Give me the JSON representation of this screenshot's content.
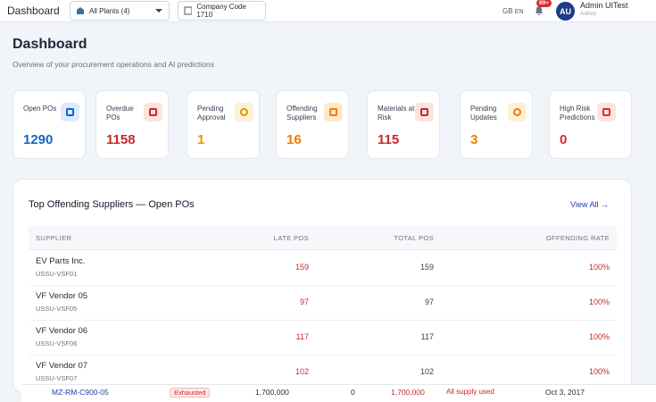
{
  "header": {
    "title": "Dashboard",
    "plant": "All Plants (4)",
    "company": "Company Code 1710",
    "lang_code": "GB",
    "lang": "EN",
    "notifications": "99+",
    "avatar": "AU",
    "user": "Admin UITest",
    "role": "Admin"
  },
  "page": {
    "title": "Dashboard",
    "subtitle": "Overview of your procurement operations and AI predictions"
  },
  "kpis": [
    {
      "label": "Open POs",
      "value": 1290
    },
    {
      "label": "Overdue POs",
      "value": 1158
    },
    {
      "label": "Pending Approval",
      "value": 1
    },
    {
      "label": "Offending Suppliers",
      "value": 16
    },
    {
      "label": "Materials at Risk",
      "value": 115
    },
    {
      "label": "Pending Updates",
      "value": 3
    },
    {
      "label": "High Risk Predictions",
      "value": 0
    }
  ],
  "table": {
    "title": "Top Offending Suppliers — Open POs",
    "view_all": "View All →",
    "columns": [
      "SUPPLIER",
      "LATE POS",
      "TOTAL POS",
      "OFFENDING RATE"
    ],
    "rows": [
      [
        "EV Parts Inc.",
        "USSU-VSF01",
        159,
        159,
        "100%"
      ],
      [
        "VF Vendor 05",
        "USSU-VSF05",
        97,
        97,
        "100%"
      ],
      [
        "VF Vendor 06",
        "USSU-VSF06",
        117,
        117,
        "100%"
      ],
      [
        "VF Vendor 07",
        "USSU-VSF07",
        102,
        102,
        "100%"
      ]
    ]
  },
  "overflow_row": [
    "MZ-RM-C900-05",
    "Exhausted",
    "1,700,000",
    "0",
    "1,700,000",
    "All supply used",
    "Oct 3, 2017"
  ]
}
